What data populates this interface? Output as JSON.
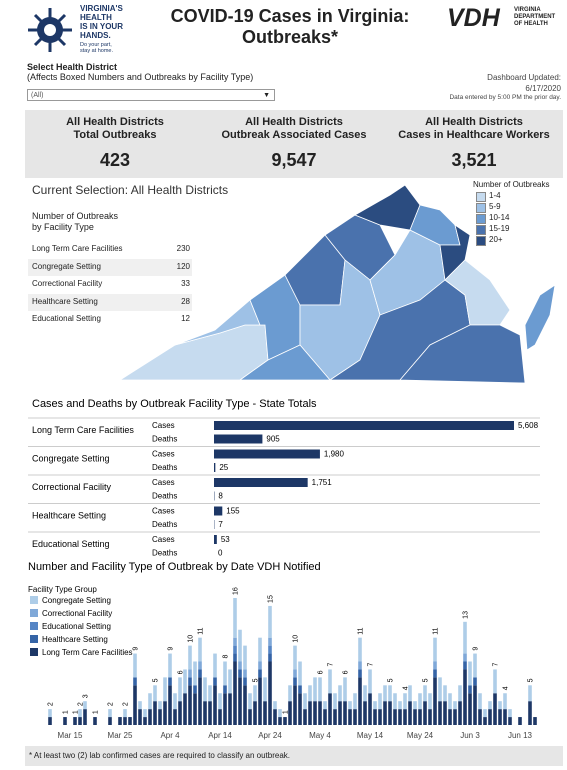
{
  "header": {
    "logo_lines": [
      "VIRGINIA'S",
      "HEALTH",
      "IS IN YOUR",
      "HANDS."
    ],
    "logo_tagline": [
      "Do your part,",
      "stay at home."
    ],
    "title_lines": [
      "COVID-19 Cases in Virginia:",
      "Outbreaks*"
    ],
    "agency_abbr": "VDH",
    "agency_lines": [
      "VIRGINIA",
      "DEPARTMENT",
      "OF HEALTH"
    ]
  },
  "filter": {
    "label": "Select Health District",
    "note": "(Affects Boxed Numbers and Outbreaks by Facility Type)",
    "selected": "(All)"
  },
  "updated": {
    "label": "Dashboard Updated:",
    "date": "6/17/2020",
    "note": "Data entered by 5:00 PM the prior day."
  },
  "kpis": [
    {
      "label_lines": [
        "All Health Districts",
        "Total Outbreaks"
      ],
      "value": "423"
    },
    {
      "label_lines": [
        "All Health Districts",
        "Outbreak Associated Cases"
      ],
      "value": "9,547"
    },
    {
      "label_lines": [
        "All Health Districts",
        "Cases in Healthcare Workers"
      ],
      "value": "3,521"
    }
  ],
  "selection": "Current Selection: All Health Districts",
  "map_legend": {
    "title": "Number of Outbreaks",
    "items": [
      {
        "label": "1-4",
        "color": "#c6dbef"
      },
      {
        "label": "5-9",
        "color": "#9ec1e6"
      },
      {
        "label": "10-14",
        "color": "#6b9bd1"
      },
      {
        "label": "15-19",
        "color": "#4a72ad"
      },
      {
        "label": "20+",
        "color": "#2b4c80"
      }
    ]
  },
  "facility_table": {
    "header_lines": [
      "Number of Outbreaks",
      "by Facility Type"
    ],
    "rows": [
      [
        "Long Term Care Facilities",
        230
      ],
      [
        "Congregate Setting",
        120
      ],
      [
        "Correctional Facility",
        33
      ],
      [
        "Healthcare Setting",
        28
      ],
      [
        "Educational Setting",
        12
      ]
    ]
  },
  "chart_data": [
    {
      "type": "bar",
      "orientation": "horizontal",
      "title": "Cases and Deaths by Outbreak Facility Type - State Totals",
      "categories": [
        "Long Term Care Facilities",
        "Congregate Setting",
        "Correctional Facility",
        "Healthcare Setting",
        "Educational Setting"
      ],
      "series": [
        {
          "name": "Cases",
          "color": "#1d3766",
          "values": [
            5608,
            1980,
            1751,
            155,
            53
          ],
          "value_labels": [
            "5,608",
            "1,980",
            "1,751",
            "155",
            "53"
          ]
        },
        {
          "name": "Deaths",
          "color": "#1d3766",
          "values": [
            905,
            25,
            8,
            7,
            0
          ]
        }
      ]
    },
    {
      "type": "stacked_bar",
      "title": "Number and Facility Type of Outbreak by Date VDH Notified",
      "legend_title": "Facility Type Group",
      "categories": [
        null,
        null,
        null,
        null,
        "Mar 15",
        null,
        null,
        null,
        null,
        null,
        null,
        null,
        null,
        null,
        "Mar 25",
        null,
        null,
        null,
        null,
        null,
        null,
        null,
        null,
        null,
        "Apr 4",
        null,
        null,
        null,
        null,
        null,
        null,
        null,
        null,
        null,
        "Apr 14",
        null,
        null,
        null,
        null,
        null,
        null,
        null,
        null,
        null,
        "Apr 24",
        null,
        null,
        null,
        null,
        null,
        null,
        null,
        null,
        null,
        "May 4",
        null,
        null,
        null,
        null,
        null,
        null,
        null,
        null,
        null,
        "May 14",
        null,
        null,
        null,
        null,
        null,
        null,
        null,
        null,
        null,
        "May 24",
        null,
        null,
        null,
        null,
        null,
        null,
        null,
        null,
        null,
        "Jun 3",
        null,
        null,
        null,
        null,
        null,
        null,
        null,
        null,
        null,
        "Jun 13",
        null,
        null,
        null
      ],
      "series": [
        {
          "name": "Congregate Setting",
          "color": "#aecde8",
          "values": [
            1,
            0,
            0,
            0,
            0,
            0,
            1,
            1,
            0,
            0,
            0,
            0,
            1,
            0,
            0,
            1,
            0,
            3,
            1,
            1,
            2,
            2,
            1,
            3,
            3,
            2,
            3,
            3,
            3,
            3,
            3,
            3,
            2,
            3,
            2,
            3,
            3,
            5,
            4,
            3,
            2,
            2,
            3,
            3,
            4,
            1,
            1,
            0,
            2,
            3,
            3,
            2,
            2,
            3,
            3,
            1,
            3,
            2,
            2,
            3,
            1,
            2,
            3,
            2,
            3,
            1,
            2,
            2,
            2,
            2,
            1,
            2,
            2,
            1,
            2,
            2,
            2,
            3,
            3,
            2,
            2,
            1,
            2,
            4,
            3,
            3,
            2,
            1,
            1,
            3,
            1,
            2,
            1,
            0,
            0,
            0,
            2,
            0
          ]
        },
        {
          "name": "Correctional Facility",
          "color": "#7fa8d8",
          "values": [
            0,
            0,
            0,
            0,
            0,
            0,
            0,
            0,
            0,
            0,
            0,
            0,
            0,
            0,
            0,
            0,
            0,
            0,
            0,
            0,
            0,
            0,
            0,
            0,
            0,
            0,
            0,
            0,
            1,
            0,
            1,
            0,
            0,
            0,
            0,
            0,
            0,
            1,
            1,
            1,
            0,
            0,
            1,
            0,
            1,
            0,
            0,
            0,
            0,
            1,
            0,
            0,
            0,
            0,
            0,
            0,
            0,
            0,
            0,
            0,
            0,
            0,
            1,
            0,
            0,
            0,
            0,
            0,
            0,
            0,
            0,
            0,
            0,
            0,
            0,
            0,
            0,
            1,
            0,
            0,
            0,
            0,
            0,
            1,
            0,
            0,
            0,
            0,
            0,
            0,
            0,
            0,
            0,
            0,
            0,
            0,
            0,
            0
          ]
        },
        {
          "name": "Educational Setting",
          "color": "#5585c5",
          "values": [
            0,
            0,
            0,
            0,
            0,
            0,
            0,
            0,
            0,
            0,
            0,
            0,
            0,
            0,
            0,
            0,
            0,
            0,
            0,
            0,
            0,
            0,
            0,
            0,
            0,
            0,
            0,
            0,
            0,
            0,
            0,
            0,
            0,
            0,
            0,
            0,
            0,
            1,
            0,
            0,
            0,
            0,
            0,
            0,
            1,
            0,
            0,
            0,
            0,
            0,
            0,
            0,
            0,
            0,
            0,
            0,
            0,
            0,
            0,
            0,
            0,
            0,
            0,
            0,
            0,
            0,
            0,
            0,
            0,
            0,
            0,
            0,
            0,
            0,
            0,
            0,
            0,
            0,
            0,
            0,
            0,
            0,
            0,
            0,
            0,
            0,
            0,
            0,
            0,
            0,
            0,
            0,
            0,
            0,
            0,
            0,
            0,
            0
          ]
        },
        {
          "name": "Healthcare Setting",
          "color": "#3564a6",
          "values": [
            0,
            0,
            0,
            0,
            0,
            0,
            0,
            0,
            0,
            0,
            0,
            0,
            0,
            0,
            0,
            0,
            0,
            1,
            0,
            0,
            0,
            0,
            0,
            0,
            1,
            0,
            0,
            0,
            1,
            1,
            1,
            0,
            0,
            1,
            0,
            1,
            0,
            1,
            1,
            1,
            0,
            0,
            1,
            0,
            1,
            0,
            0,
            0,
            0,
            1,
            1,
            0,
            0,
            0,
            0,
            0,
            0,
            0,
            0,
            0,
            0,
            0,
            1,
            0,
            0,
            0,
            0,
            0,
            0,
            0,
            0,
            0,
            0,
            0,
            0,
            0,
            0,
            1,
            0,
            0,
            0,
            0,
            0,
            1,
            1,
            1,
            0,
            0,
            0,
            0,
            0,
            0,
            0,
            0,
            0,
            0,
            0,
            0
          ]
        },
        {
          "name": "Long Term Care Facilities",
          "color": "#1d3766",
          "values": [
            1,
            0,
            0,
            1,
            0,
            1,
            1,
            2,
            0,
            1,
            0,
            0,
            1,
            0,
            1,
            1,
            1,
            5,
            2,
            1,
            2,
            3,
            2,
            3,
            5,
            2,
            3,
            4,
            5,
            4,
            6,
            3,
            3,
            5,
            2,
            4,
            4,
            8,
            6,
            5,
            2,
            3,
            6,
            3,
            8,
            2,
            1,
            1,
            3,
            5,
            4,
            2,
            3,
            3,
            3,
            2,
            4,
            2,
            3,
            3,
            2,
            2,
            6,
            3,
            4,
            2,
            2,
            3,
            3,
            2,
            2,
            2,
            3,
            2,
            2,
            3,
            2,
            6,
            3,
            3,
            2,
            2,
            3,
            7,
            4,
            5,
            2,
            1,
            2,
            4,
            2,
            2,
            1,
            0,
            1,
            0,
            3,
            1
          ]
        }
      ],
      "total_labels": [
        2,
        null,
        null,
        1,
        null,
        1,
        2,
        3,
        null,
        1,
        null,
        null,
        2,
        null,
        null,
        2,
        null,
        9,
        null,
        null,
        null,
        5,
        null,
        null,
        9,
        null,
        6,
        null,
        10,
        null,
        11,
        null,
        null,
        null,
        null,
        8,
        null,
        16,
        null,
        null,
        null,
        5,
        null,
        null,
        15,
        null,
        null,
        1,
        null,
        10,
        null,
        null,
        null,
        null,
        6,
        null,
        7,
        null,
        null,
        6,
        null,
        null,
        11,
        null,
        7,
        null,
        null,
        null,
        5,
        null,
        null,
        4,
        null,
        null,
        null,
        5,
        null,
        11,
        null,
        null,
        null,
        null,
        null,
        13,
        null,
        9,
        null,
        null,
        null,
        7,
        null,
        4,
        null,
        null,
        null,
        null,
        5,
        null
      ]
    }
  ],
  "footnote": "* At least two (2) lab confirmed cases are required to classify an outbreak."
}
